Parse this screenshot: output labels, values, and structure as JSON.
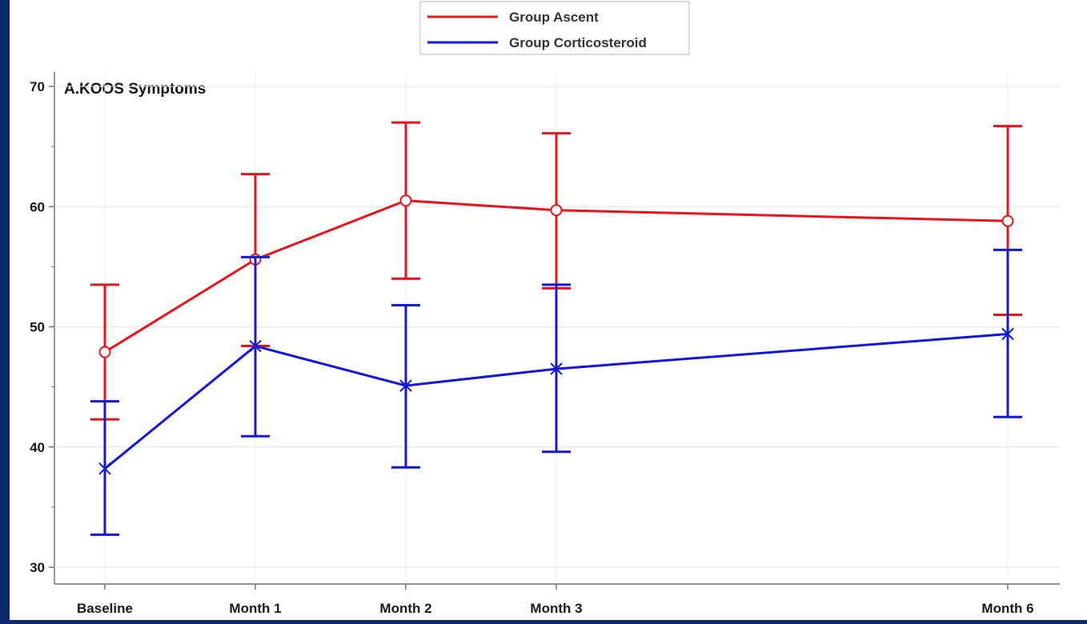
{
  "chart_data": {
    "type": "line",
    "title": "A.KOOS Symptoms",
    "xlabel": "",
    "ylabel": "",
    "categories": [
      "Baseline",
      "Month 1",
      "Month 2",
      "Month 3",
      "Month 6"
    ],
    "x_months": [
      0,
      1,
      2,
      3,
      6
    ],
    "ylim": [
      30,
      70
    ],
    "yticks": [
      "30",
      "40",
      "50",
      "60",
      "70"
    ],
    "grid": true,
    "legend_position": "top-center",
    "error_bars": true,
    "series": [
      {
        "name": "Group Ascent",
        "color": "#e8141c",
        "marker": "circle",
        "values": [
          47.9,
          55.6,
          60.5,
          59.7,
          58.8
        ],
        "lower": [
          42.3,
          48.4,
          54.0,
          53.2,
          51.0
        ],
        "upper": [
          53.5,
          62.7,
          67.0,
          66.1,
          66.7
        ]
      },
      {
        "name": "Group Corticosteroid",
        "color": "#1515e0",
        "marker": "x",
        "values": [
          38.2,
          48.4,
          45.1,
          46.5,
          49.4
        ],
        "lower": [
          32.7,
          40.9,
          38.3,
          39.6,
          42.5
        ],
        "upper": [
          43.8,
          55.8,
          51.8,
          53.5,
          56.4
        ]
      }
    ]
  }
}
